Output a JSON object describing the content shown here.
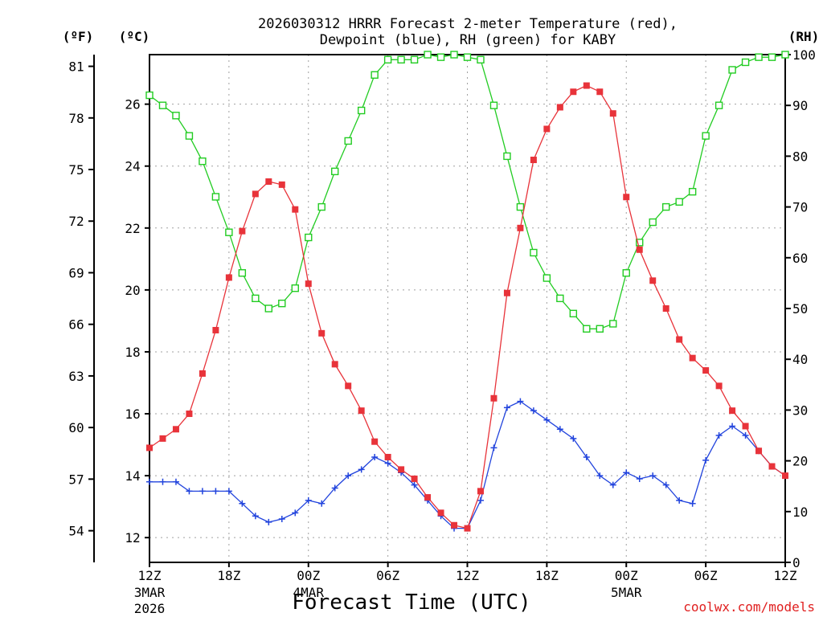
{
  "chart_data": {
    "type": "line",
    "title_line1": "2026030312 HRRR Forecast 2-meter Temperature (red),",
    "title_line2": "Dewpoint (blue), RH (green) for KABY",
    "xlabel": "Forecast Time (UTC)",
    "credit": "coolwx.com/models",
    "units": {
      "f": "(ºF)",
      "c": "(ºC)",
      "rh": "(RH)"
    },
    "x_hours_range": [
      0,
      48
    ],
    "x_ticks": [
      {
        "h": 0,
        "label": "12Z",
        "sub1": "3MAR",
        "sub2": "2026"
      },
      {
        "h": 6,
        "label": "18Z",
        "sub1": "",
        "sub2": ""
      },
      {
        "h": 12,
        "label": "00Z",
        "sub1": "4MAR",
        "sub2": ""
      },
      {
        "h": 18,
        "label": "06Z",
        "sub1": "",
        "sub2": ""
      },
      {
        "h": 24,
        "label": "12Z",
        "sub1": "",
        "sub2": ""
      },
      {
        "h": 30,
        "label": "18Z",
        "sub1": "",
        "sub2": ""
      },
      {
        "h": 36,
        "label": "00Z",
        "sub1": "5MAR",
        "sub2": ""
      },
      {
        "h": 42,
        "label": "06Z",
        "sub1": "",
        "sub2": ""
      },
      {
        "h": 48,
        "label": "12Z",
        "sub1": "",
        "sub2": ""
      }
    ],
    "c_range": [
      11.2,
      27.6
    ],
    "c_ticks": [
      "12",
      "14",
      "16",
      "18",
      "20",
      "22",
      "24",
      "26"
    ],
    "f_ticks": [
      "54",
      "57",
      "60",
      "63",
      "66",
      "69",
      "72",
      "75",
      "78",
      "81"
    ],
    "rh_range": [
      0,
      100
    ],
    "rh_ticks": [
      "0",
      "10",
      "20",
      "30",
      "40",
      "50",
      "60",
      "70",
      "80",
      "90",
      "100"
    ],
    "series": [
      {
        "name": "Temperature",
        "unit": "C",
        "color": "#e8333a",
        "marker": "filled-square",
        "values": [
          14.9,
          15.2,
          15.5,
          16.0,
          17.3,
          18.7,
          20.4,
          21.9,
          23.1,
          23.5,
          23.4,
          22.6,
          20.2,
          18.6,
          17.6,
          16.9,
          16.1,
          15.1,
          14.6,
          14.2,
          13.9,
          13.3,
          12.8,
          12.4,
          12.3,
          13.5,
          16.5,
          19.9,
          22.0,
          24.2,
          25.2,
          25.9,
          26.4,
          26.6,
          26.4,
          25.7,
          23.0,
          21.3,
          20.3,
          19.4,
          18.4,
          17.8,
          17.4,
          16.9,
          16.1,
          15.6,
          14.8,
          14.3,
          14.0
        ]
      },
      {
        "name": "Dewpoint",
        "unit": "C",
        "color": "#2244dd",
        "marker": "plus",
        "values": [
          13.8,
          13.8,
          13.8,
          13.5,
          13.5,
          13.5,
          13.5,
          13.1,
          12.7,
          12.5,
          12.6,
          12.8,
          13.2,
          13.1,
          13.6,
          14.0,
          14.2,
          14.6,
          14.4,
          14.1,
          13.7,
          13.2,
          12.7,
          12.3,
          12.3,
          13.2,
          14.9,
          16.2,
          16.4,
          16.1,
          15.8,
          15.5,
          15.2,
          14.6,
          14.0,
          13.7,
          14.1,
          13.9,
          14.0,
          13.7,
          13.2,
          13.1,
          14.5,
          15.3,
          15.6,
          15.3,
          14.8,
          14.3,
          14.0
        ]
      },
      {
        "name": "RH",
        "unit": "%",
        "color": "#22cc22",
        "marker": "open-square",
        "values": [
          92,
          90,
          88,
          84,
          79,
          72,
          65,
          57,
          52,
          50,
          51,
          54,
          64,
          70,
          77,
          83,
          89,
          96,
          99,
          99,
          99,
          100,
          99.5,
          100,
          99.5,
          99,
          90,
          80,
          70,
          61,
          56,
          52,
          49,
          46,
          46,
          47,
          57,
          63,
          67,
          70,
          71,
          73,
          84,
          90,
          97,
          98.5,
          99.5,
          99.5,
          100
        ]
      }
    ]
  }
}
